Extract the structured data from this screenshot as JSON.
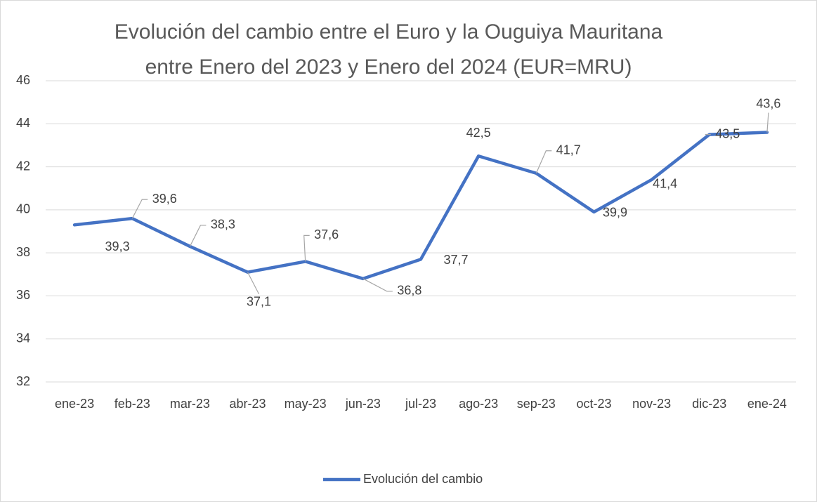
{
  "chart_data": {
    "type": "line",
    "title": [
      "Evolución del cambio entre el Euro y la Ouguiya Mauritana",
      "entre Enero del 2023 y Enero del 2024 (EUR=MRU)"
    ],
    "categories": [
      "ene-23",
      "feb-23",
      "mar-23",
      "abr-23",
      "may-23",
      "jun-23",
      "jul-23",
      "ago-23",
      "sep-23",
      "oct-23",
      "nov-23",
      "dic-23",
      "ene-24"
    ],
    "series": [
      {
        "name": "Evolución del cambio",
        "color": "#4472c4",
        "values": [
          39.3,
          39.6,
          38.3,
          37.1,
          37.6,
          36.8,
          37.7,
          42.5,
          41.7,
          39.9,
          41.4,
          43.5,
          43.6
        ],
        "value_labels": [
          "39,3",
          "39,6",
          "38,3",
          "37,1",
          "37,6",
          "36,8",
          "37,7",
          "42,5",
          "41,7",
          "39,9",
          "41,4",
          "43,5",
          "43,6"
        ]
      }
    ],
    "ylim": [
      32,
      46
    ],
    "yticks": [
      32,
      34,
      36,
      38,
      40,
      42,
      44,
      46
    ],
    "grid": true,
    "legend": "bottom"
  }
}
